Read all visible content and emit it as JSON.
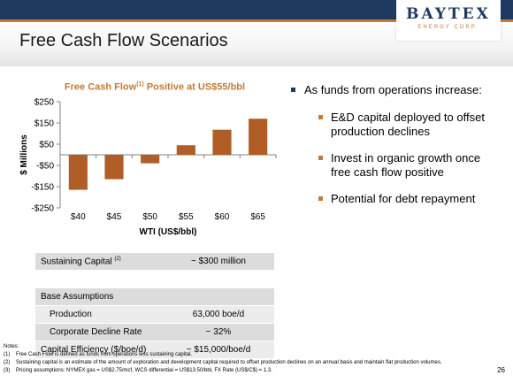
{
  "header": {
    "logo_main": "BAYTEX",
    "logo_sub": "ENERGY CORP.",
    "colors": {
      "navy": "#1f3a60",
      "orange": "#c57a35"
    }
  },
  "title": "Free Cash Flow Scenarios",
  "chart_data": {
    "type": "bar",
    "title_main": "Free Cash Flow",
    "title_sup": "(1)",
    "title_rest": " Positive at US$55/bbl",
    "categories": [
      "$40",
      "$45",
      "$50",
      "$55",
      "$60",
      "$65"
    ],
    "values": [
      -165,
      -115,
      -40,
      45,
      118,
      170
    ],
    "xlabel": "WTI (US$/bbl)",
    "ylabel": "$ Millions",
    "ylim": [
      -250,
      250
    ],
    "yticks": [
      250,
      150,
      50,
      -50,
      -150,
      -250
    ],
    "ytick_labels": [
      "$250",
      "$150",
      "$50",
      "-$50",
      "-$150",
      "-$250"
    ],
    "bar_color": "#b05e26",
    "grid": false
  },
  "bullets": {
    "main": "As funds from operations increase:",
    "subs": [
      "E&D capital deployed to offset production declines",
      "Invest in organic growth once free cash flow positive",
      "Potential for debt repayment"
    ]
  },
  "table": {
    "sustaining_label": "Sustaining Capital",
    "sustaining_sup": "(2)",
    "sustaining_value": "~ $300 million",
    "base_label": "Base Assumptions",
    "rows": [
      {
        "label": "Production",
        "value": "63,000 boe/d"
      },
      {
        "label": "Corporate Decline Rate",
        "value": "~ 32%"
      },
      {
        "label": "Capital Efficiency ($/boe/d)",
        "value": "~ $15,000/boe/d"
      }
    ]
  },
  "notes": {
    "heading": "Notes:",
    "items": [
      {
        "num": "(1)",
        "text": "Free Cash Flow is defined as funds from operations less sustaining capital."
      },
      {
        "num": "(2)",
        "text": "Sustaining capital is an estimate of the amount of exploration and development capital required to offset production declines on an annual basis and maintain flat production volumes."
      },
      {
        "num": "(3)",
        "text": "Pricing assumptions:  NYMEX gas = US$2.75/mcf, WCS differential = US$13.50/bbl, FX Rate (US$/C$) = 1.3."
      }
    ]
  },
  "page_number": "26"
}
